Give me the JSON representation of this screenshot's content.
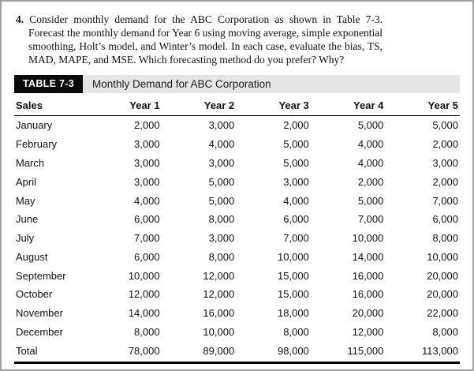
{
  "problem": {
    "number": "4.",
    "text": "Consider monthly demand for the ABC Corporation as shown in Table 7-3. Forecast the monthly demand for Year 6 using moving average, simple exponential smoothing, Holt’s model, and Winter’s model. In each case, evaluate the bias, TS, MAD, MAPE, and MSE. Which forecasting method do you prefer? Why?"
  },
  "table": {
    "label": "TABLE 7-3",
    "title": "Monthly Demand for ABC Corporation",
    "columns": [
      "Sales",
      "Year 1",
      "Year 2",
      "Year 3",
      "Year 4",
      "Year 5"
    ],
    "rows": [
      {
        "month": "January",
        "values": [
          "2,000",
          "3,000",
          "2,000",
          "5,000",
          "5,000"
        ]
      },
      {
        "month": "February",
        "values": [
          "3,000",
          "4,000",
          "5,000",
          "4,000",
          "2,000"
        ]
      },
      {
        "month": "March",
        "values": [
          "3,000",
          "3,000",
          "5,000",
          "4,000",
          "3,000"
        ]
      },
      {
        "month": "April",
        "values": [
          "3,000",
          "5,000",
          "3,000",
          "2,000",
          "2,000"
        ]
      },
      {
        "month": "May",
        "values": [
          "4,000",
          "5,000",
          "4,000",
          "5,000",
          "7,000"
        ]
      },
      {
        "month": "June",
        "values": [
          "6,000",
          "8,000",
          "6,000",
          "7,000",
          "6,000"
        ]
      },
      {
        "month": "July",
        "values": [
          "7,000",
          "3,000",
          "7,000",
          "10,000",
          "8,000"
        ]
      },
      {
        "month": "August",
        "values": [
          "6,000",
          "8,000",
          "10,000",
          "14,000",
          "10,000"
        ]
      },
      {
        "month": "September",
        "values": [
          "10,000",
          "12,000",
          "15,000",
          "16,000",
          "20,000"
        ]
      },
      {
        "month": "October",
        "values": [
          "12,000",
          "12,000",
          "15,000",
          "16,000",
          "20,000"
        ]
      },
      {
        "month": "November",
        "values": [
          "14,000",
          "16,000",
          "18,000",
          "20,000",
          "22,000"
        ]
      },
      {
        "month": "December",
        "values": [
          "8,000",
          "10,000",
          "8,000",
          "12,000",
          "8,000"
        ]
      },
      {
        "month": "Total",
        "values": [
          "78,000",
          "89,000",
          "98,000",
          "115,000",
          "113,000"
        ]
      }
    ]
  },
  "colors": {
    "title_bar_bg": "#e5e5e5",
    "label_bg": "#0a0a0a",
    "label_text": "#ffffff",
    "page_border": "#a0a0a0",
    "rule": "#000000"
  }
}
